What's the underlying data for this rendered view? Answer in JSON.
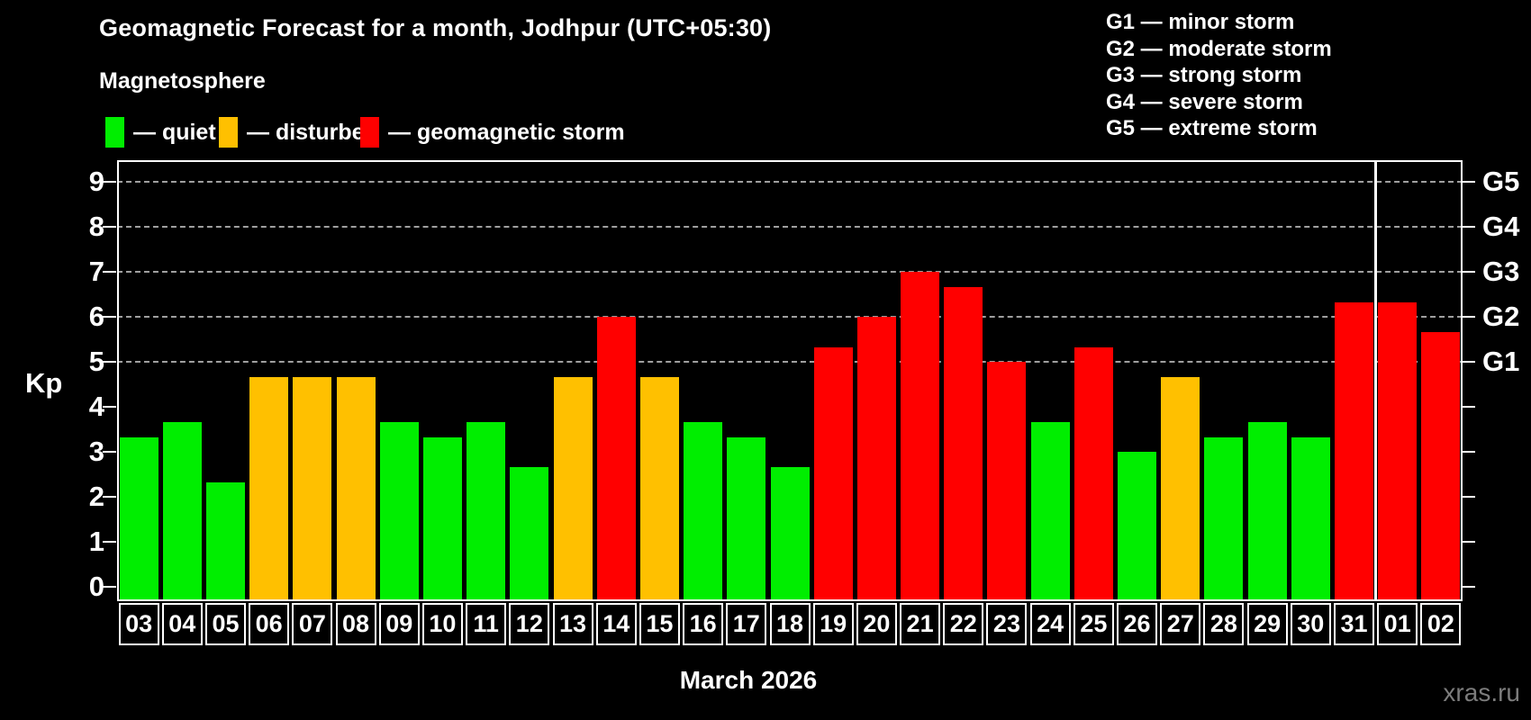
{
  "title": "Geomagnetic Forecast for a month, Jodhpur (UTC+05:30)",
  "subtitle": "Magnetosphere",
  "legend": {
    "quiet": "— quiet",
    "disturbed": "— disturbed",
    "storm": "— geomagnetic storm"
  },
  "g_legend": [
    "G1 — minor storm",
    "G2 — moderate storm",
    "G3 — strong storm",
    "G4 — severe storm",
    "G5 — extreme storm"
  ],
  "axis": {
    "kp_label": "Kp",
    "y_ticks": [
      0,
      1,
      2,
      3,
      4,
      5,
      6,
      7,
      8,
      9
    ],
    "right_labels": {
      "5": "G1",
      "6": "G2",
      "7": "G3",
      "8": "G4",
      "9": "G5"
    }
  },
  "xlabel": "March 2026",
  "watermark": "xras.ru",
  "colors": {
    "quiet": "#00EE00",
    "disturbed": "#FFC000",
    "storm": "#FF0000",
    "gridline": "#9f9f9f"
  },
  "chart_data": {
    "type": "bar",
    "title": "Geomagnetic Forecast for a month, Jodhpur (UTC+05:30)",
    "xlabel": "March 2026",
    "ylabel": "Kp",
    "ylim": [
      0,
      9
    ],
    "gridlines_at": [
      5,
      6,
      7,
      8,
      9
    ],
    "legend_position": "top",
    "month_separator_before_index": 29,
    "categories": [
      "03",
      "04",
      "05",
      "06",
      "07",
      "08",
      "09",
      "10",
      "11",
      "12",
      "13",
      "14",
      "15",
      "16",
      "17",
      "18",
      "19",
      "20",
      "21",
      "22",
      "23",
      "24",
      "25",
      "26",
      "27",
      "28",
      "29",
      "30",
      "31",
      "01",
      "02"
    ],
    "values": [
      3.33,
      3.67,
      2.33,
      4.67,
      4.67,
      4.67,
      3.67,
      3.33,
      3.67,
      2.67,
      4.67,
      6,
      4.67,
      3.67,
      3.33,
      2.67,
      5.33,
      6,
      7,
      6.67,
      5,
      3.67,
      5.33,
      3,
      4.67,
      3.33,
      3.67,
      3.33,
      6.33,
      6.33,
      5.67
    ],
    "status": [
      "quiet",
      "quiet",
      "quiet",
      "disturbed",
      "disturbed",
      "disturbed",
      "quiet",
      "quiet",
      "quiet",
      "quiet",
      "disturbed",
      "storm",
      "disturbed",
      "quiet",
      "quiet",
      "quiet",
      "storm",
      "storm",
      "storm",
      "storm",
      "storm",
      "quiet",
      "storm",
      "quiet",
      "disturbed",
      "quiet",
      "quiet",
      "quiet",
      "storm",
      "storm",
      "storm"
    ]
  }
}
